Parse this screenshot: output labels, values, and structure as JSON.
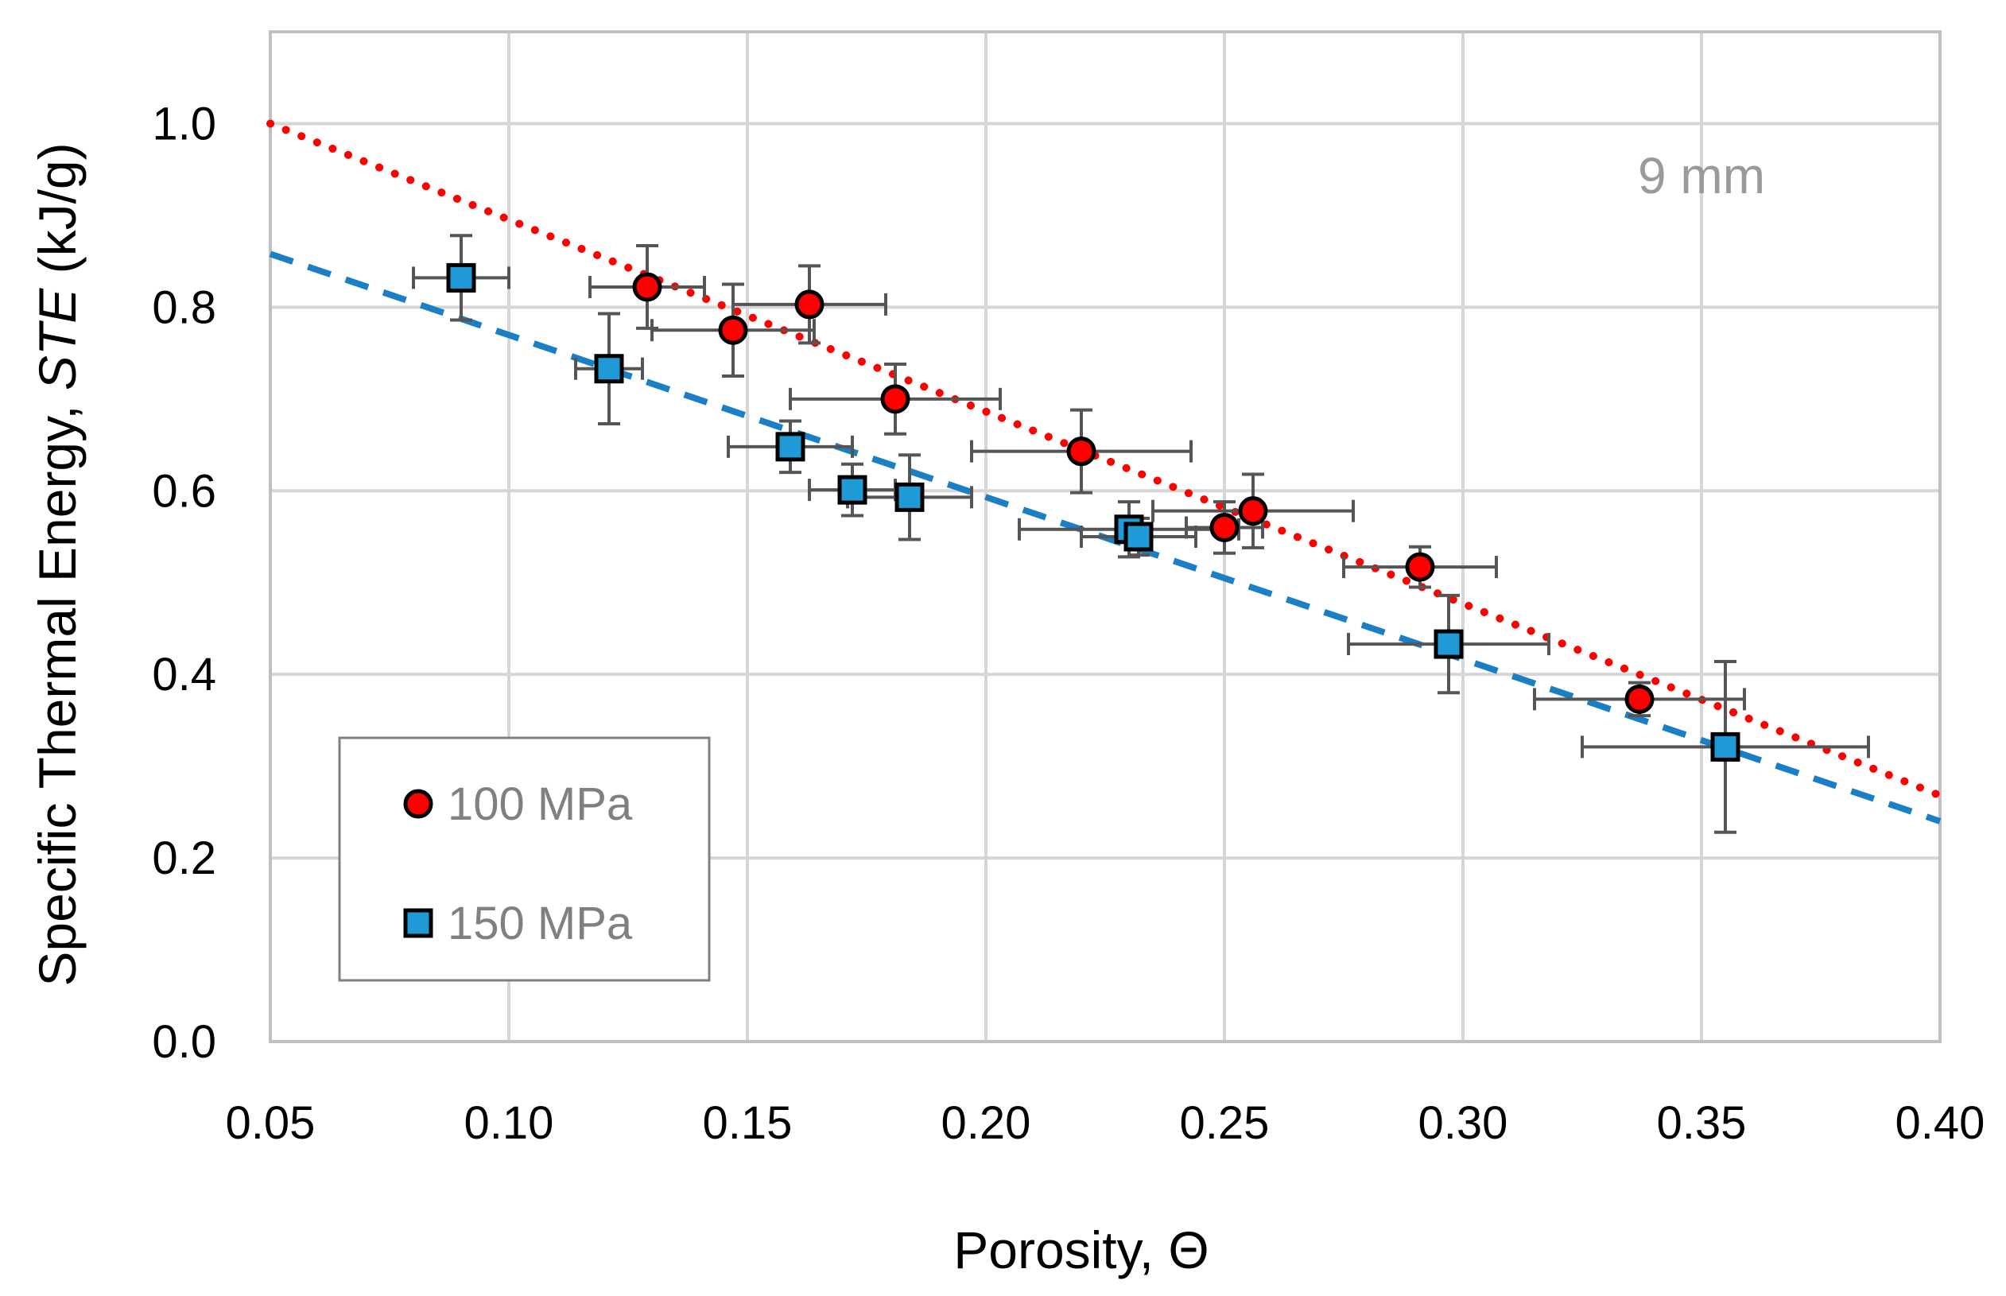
{
  "chart_data": {
    "type": "scatter",
    "title": "",
    "annotation": "9 mm",
    "xlabel": "Porosity, Θ",
    "ylabel_main": "Specific Thermal Energy, ",
    "ylabel_italic": "STE",
    "ylabel_unit": " (kJ/g)",
    "xlim": [
      0.05,
      0.4
    ],
    "ylim": [
      0.0,
      1.1
    ],
    "xticks": [
      0.05,
      0.1,
      0.15,
      0.2,
      0.25,
      0.3,
      0.35,
      0.4
    ],
    "xtick_labels": [
      "0.05",
      "0.10",
      "0.15",
      "0.20",
      "0.25",
      "0.30",
      "0.35",
      "0.40"
    ],
    "yticks": [
      0.0,
      0.2,
      0.4,
      0.6,
      0.8,
      1.0
    ],
    "ytick_labels": [
      "0.0",
      "0.2",
      "0.4",
      "0.6",
      "0.8",
      "1.0"
    ],
    "grid": true,
    "legend_position": "bottom-left",
    "legend": [
      "100 MPa",
      "150 MPa"
    ],
    "series": [
      {
        "name": "100 MPa",
        "marker": "circle",
        "color": "#ff0000",
        "points": [
          {
            "x": 0.129,
            "y": 0.822,
            "xerr": 0.012,
            "yerr": 0.045
          },
          {
            "x": 0.147,
            "y": 0.775,
            "xerr": 0.017,
            "yerr": 0.05
          },
          {
            "x": 0.163,
            "y": 0.803,
            "xerr": 0.016,
            "yerr": 0.042
          },
          {
            "x": 0.181,
            "y": 0.7,
            "xerr": 0.022,
            "yerr": 0.038
          },
          {
            "x": 0.22,
            "y": 0.643,
            "xerr": 0.023,
            "yerr": 0.045
          },
          {
            "x": 0.25,
            "y": 0.56,
            "xerr": 0.008,
            "yerr": 0.028
          },
          {
            "x": 0.256,
            "y": 0.578,
            "xerr": 0.021,
            "yerr": 0.04
          },
          {
            "x": 0.291,
            "y": 0.517,
            "xerr": 0.016,
            "yerr": 0.022
          },
          {
            "x": 0.337,
            "y": 0.373,
            "xerr": 0.022,
            "yerr": 0.018
          }
        ]
      },
      {
        "name": "150 MPa",
        "marker": "square",
        "color": "#1f9ad6",
        "points": [
          {
            "x": 0.09,
            "y": 0.832,
            "xerr": 0.01,
            "yerr": 0.046
          },
          {
            "x": 0.121,
            "y": 0.733,
            "xerr": 0.007,
            "yerr": 0.06
          },
          {
            "x": 0.159,
            "y": 0.648,
            "xerr": 0.013,
            "yerr": 0.028
          },
          {
            "x": 0.172,
            "y": 0.601,
            "xerr": 0.009,
            "yerr": 0.028
          },
          {
            "x": 0.184,
            "y": 0.593,
            "xerr": 0.013,
            "yerr": 0.046
          },
          {
            "x": 0.23,
            "y": 0.558,
            "xerr": 0.023,
            "yerr": 0.03
          },
          {
            "x": 0.232,
            "y": 0.55,
            "xerr": 0.012,
            "yerr": 0.02
          },
          {
            "x": 0.297,
            "y": 0.433,
            "xerr": 0.021,
            "yerr": 0.053
          },
          {
            "x": 0.355,
            "y": 0.321,
            "xerr": 0.03,
            "yerr": 0.093
          }
        ]
      }
    ],
    "trendlines": [
      {
        "name": "100 MPa trend",
        "style": "dotted",
        "color": "#ff0000",
        "x": [
          0.05,
          0.4
        ],
        "y": [
          1.0,
          0.268
        ]
      },
      {
        "name": "150 MPa trend",
        "style": "dashed",
        "color": "#1a7fc4",
        "x": [
          0.05,
          0.4
        ],
        "y": [
          0.858,
          0.24
        ]
      }
    ]
  }
}
